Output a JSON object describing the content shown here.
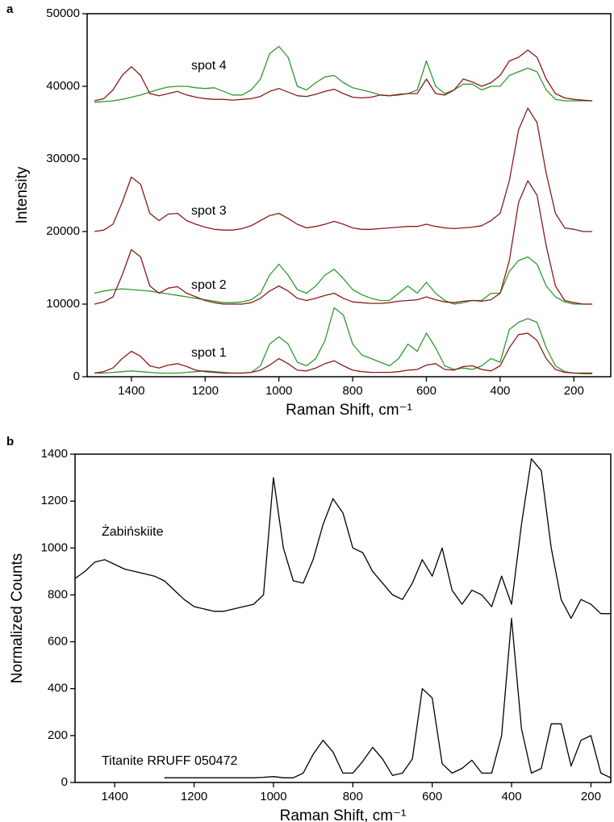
{
  "chart_data": [
    {
      "type": "line",
      "panel_label": "a",
      "x_label": "Raman Shift, cm⁻¹",
      "y_label": "Intensity",
      "annotations": [
        "spot 4",
        "spot 3",
        "spot 2",
        "spot 1"
      ],
      "xlim": [
        1520,
        100
      ],
      "xticks": [
        1400,
        1200,
        1000,
        800,
        600,
        400,
        200
      ],
      "ylim": [
        0,
        50000
      ],
      "yticks": [
        0,
        10000,
        20000,
        30000,
        40000,
        50000
      ],
      "x": [
        1500,
        1475,
        1450,
        1425,
        1400,
        1375,
        1350,
        1325,
        1300,
        1275,
        1250,
        1225,
        1200,
        1175,
        1150,
        1125,
        1100,
        1075,
        1050,
        1025,
        1000,
        975,
        950,
        925,
        900,
        875,
        850,
        825,
        800,
        775,
        750,
        725,
        700,
        675,
        650,
        625,
        600,
        575,
        550,
        525,
        500,
        475,
        450,
        425,
        400,
        375,
        350,
        325,
        300,
        275,
        250,
        225,
        200,
        175,
        150
      ],
      "series": [
        {
          "color": "#2e9a2e",
          "values": [
            500,
            500,
            600,
            700,
            800,
            700,
            600,
            500,
            500,
            500,
            600,
            700,
            800,
            700,
            600,
            500,
            500,
            600,
            1500,
            4500,
            5500,
            4500,
            2000,
            1500,
            2500,
            5000,
            9500,
            8500,
            4500,
            3000,
            2500,
            2000,
            1500,
            2500,
            4500,
            3500,
            6000,
            4000,
            1500,
            1000,
            1200,
            1000,
            1500,
            2500,
            2000,
            6500,
            7500,
            8000,
            7500,
            4000,
            1500,
            700,
            500,
            400,
            400
          ]
        },
        {
          "color": "#8b1a1a",
          "values": [
            500,
            700,
            1200,
            2500,
            3500,
            2800,
            1500,
            1200,
            1600,
            1800,
            1400,
            900,
            700,
            600,
            500,
            500,
            500,
            600,
            900,
            1600,
            2500,
            1800,
            900,
            800,
            1200,
            1800,
            2200,
            1500,
            900,
            700,
            600,
            600,
            600,
            700,
            900,
            1000,
            1600,
            1800,
            1000,
            900,
            1400,
            1500,
            1000,
            800,
            1500,
            4000,
            5800,
            6000,
            5000,
            2500,
            1000,
            600,
            500,
            500,
            500
          ]
        },
        {
          "color": "#2e9a2e",
          "values": [
            11500,
            11800,
            12000,
            12100,
            12000,
            11900,
            11800,
            11600,
            11400,
            11200,
            11000,
            10800,
            10600,
            10400,
            10200,
            10200,
            10300,
            10600,
            11500,
            14000,
            15500,
            14000,
            12000,
            11500,
            12500,
            14000,
            14800,
            13500,
            12000,
            11300,
            10800,
            10500,
            10500,
            11500,
            12500,
            11500,
            13000,
            11500,
            10500,
            10000,
            10200,
            10500,
            10500,
            11500,
            11500,
            14500,
            16000,
            16500,
            15500,
            12500,
            11000,
            10300,
            10000,
            10000,
            10000
          ]
        },
        {
          "color": "#8b1a1a",
          "values": [
            10000,
            10300,
            11000,
            14000,
            17500,
            16500,
            12500,
            11500,
            12200,
            12400,
            11500,
            11000,
            10500,
            10200,
            10000,
            10000,
            10000,
            10200,
            10800,
            11800,
            12500,
            11800,
            10800,
            10500,
            10800,
            11200,
            11500,
            10800,
            10300,
            10200,
            10100,
            10100,
            10200,
            10400,
            10500,
            10600,
            11000,
            10600,
            10300,
            10200,
            10400,
            10500,
            10400,
            10600,
            11500,
            16000,
            24000,
            27000,
            25000,
            18000,
            12500,
            10500,
            10200,
            10000,
            10000
          ]
        },
        {
          "color": "#8b1a1a",
          "values": [
            20000,
            20200,
            21000,
            24000,
            27500,
            26500,
            22500,
            21500,
            22400,
            22500,
            21500,
            21000,
            20600,
            20300,
            20200,
            20200,
            20400,
            20800,
            21500,
            22200,
            22500,
            21800,
            21000,
            20500,
            20700,
            21000,
            21400,
            21000,
            20500,
            20300,
            20300,
            20400,
            20500,
            20600,
            20700,
            20700,
            21000,
            20700,
            20500,
            20400,
            20500,
            20600,
            20800,
            21500,
            22500,
            27000,
            34000,
            37000,
            35000,
            28000,
            22500,
            20500,
            20300,
            20000,
            20000
          ]
        },
        {
          "color": "#2e9a2e",
          "values": [
            37800,
            37900,
            38000,
            38200,
            38500,
            38800,
            39200,
            39600,
            39900,
            40000,
            40000,
            39800,
            39700,
            39800,
            39300,
            38800,
            38800,
            39500,
            41000,
            44500,
            45500,
            44000,
            40000,
            39500,
            40500,
            41300,
            41500,
            40500,
            39800,
            39500,
            39200,
            38800,
            38700,
            38800,
            39000,
            39500,
            43500,
            40000,
            39000,
            39500,
            40300,
            40300,
            39500,
            40000,
            40000,
            41500,
            42000,
            42500,
            42000,
            39500,
            38200,
            38000,
            38000,
            38000,
            38000
          ]
        },
        {
          "color": "#8b1a1a",
          "values": [
            38000,
            38300,
            39500,
            41500,
            42700,
            41500,
            39000,
            38700,
            39000,
            39300,
            38800,
            38500,
            38300,
            38200,
            38200,
            38100,
            38200,
            38300,
            38600,
            39300,
            39700,
            39200,
            38700,
            38600,
            38900,
            39300,
            39600,
            39000,
            38500,
            38400,
            38500,
            38800,
            38700,
            38900,
            39000,
            39000,
            41000,
            39000,
            38800,
            39500,
            41000,
            40600,
            40000,
            40500,
            41500,
            43500,
            44000,
            45000,
            44000,
            41000,
            39000,
            38400,
            38200,
            38100,
            38000
          ]
        }
      ]
    },
    {
      "type": "line",
      "panel_label": "b",
      "x_label": "Raman Shift, cm⁻¹",
      "y_label": "Normalized Counts",
      "annotations": [
        "Żabińskiite",
        "Titanite RRUFF 050472"
      ],
      "xlim": [
        1500,
        150
      ],
      "xticks": [
        1400,
        1200,
        1000,
        800,
        600,
        400,
        200
      ],
      "ylim": [
        0,
        1400
      ],
      "yticks": [
        0,
        200,
        400,
        600,
        800,
        1000,
        1200,
        1400
      ],
      "x": [
        1500,
        1475,
        1450,
        1425,
        1400,
        1375,
        1350,
        1325,
        1300,
        1275,
        1250,
        1225,
        1200,
        1175,
        1150,
        1125,
        1100,
        1075,
        1050,
        1025,
        1000,
        975,
        950,
        925,
        900,
        875,
        850,
        825,
        800,
        775,
        750,
        725,
        700,
        675,
        650,
        625,
        600,
        575,
        550,
        525,
        500,
        475,
        450,
        425,
        400,
        375,
        350,
        325,
        300,
        275,
        250,
        225,
        200,
        175,
        150
      ],
      "series": [
        {
          "color": "#000000",
          "values": [
            870,
            900,
            940,
            950,
            930,
            910,
            900,
            890,
            880,
            860,
            820,
            780,
            750,
            740,
            730,
            730,
            740,
            750,
            760,
            800,
            1300,
            1000,
            860,
            850,
            950,
            1100,
            1210,
            1150,
            1000,
            980,
            900,
            850,
            800,
            780,
            850,
            950,
            880,
            1000,
            820,
            760,
            820,
            800,
            750,
            880,
            760,
            1100,
            1380,
            1330,
            1000,
            780,
            700,
            780,
            760,
            720,
            720
          ]
        },
        {
          "color": "#000000",
          "values": [
            null,
            null,
            null,
            null,
            null,
            null,
            null,
            null,
            null,
            20,
            20,
            20,
            20,
            20,
            20,
            20,
            20,
            20,
            20,
            22,
            25,
            20,
            20,
            40,
            120,
            180,
            130,
            40,
            40,
            90,
            150,
            100,
            30,
            40,
            100,
            400,
            360,
            80,
            40,
            60,
            95,
            40,
            40,
            200,
            700,
            230,
            40,
            60,
            250,
            250,
            70,
            180,
            200,
            40,
            20
          ]
        }
      ]
    }
  ]
}
